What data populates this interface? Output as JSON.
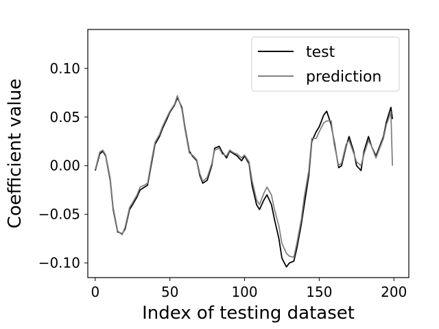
{
  "chart_data": {
    "type": "line",
    "title": "",
    "xlabel": "Index of testing dataset",
    "ylabel": "Coefficient value",
    "xlim": [
      -5,
      210
    ],
    "ylim": [
      -0.115,
      0.14
    ],
    "x_ticks": [
      0,
      50,
      100,
      150,
      200
    ],
    "x_tick_labels": [
      "0",
      "50",
      "100",
      "150",
      "200"
    ],
    "y_ticks": [
      -0.1,
      -0.05,
      0.0,
      0.05,
      0.1
    ],
    "y_tick_labels": [
      "−0.10",
      "−0.05",
      "0.00",
      "0.05",
      "0.10"
    ],
    "grid": false,
    "legend_position": "top-right",
    "series": [
      {
        "name": "test",
        "color": "#000000",
        "x": [
          0,
          3,
          5,
          7,
          10,
          12,
          15,
          18,
          20,
          23,
          25,
          28,
          30,
          33,
          35,
          38,
          40,
          43,
          45,
          48,
          50,
          53,
          55,
          58,
          60,
          63,
          65,
          68,
          70,
          72,
          75,
          78,
          80,
          83,
          85,
          88,
          90,
          93,
          95,
          98,
          100,
          103,
          105,
          108,
          110,
          113,
          115,
          118,
          120,
          123,
          125,
          128,
          130,
          133,
          135,
          138,
          140,
          143,
          145,
          148,
          150,
          153,
          155,
          158,
          160,
          163,
          165,
          168,
          170,
          173,
          175,
          178,
          180,
          183,
          185,
          188,
          190,
          193,
          195,
          198,
          199
        ],
        "y": [
          -0.005,
          0.012,
          0.015,
          0.01,
          -0.015,
          -0.045,
          -0.068,
          -0.07,
          -0.065,
          -0.045,
          -0.04,
          -0.032,
          -0.025,
          -0.022,
          -0.02,
          0.005,
          0.022,
          0.03,
          0.038,
          0.048,
          0.055,
          0.062,
          0.07,
          0.06,
          0.04,
          0.015,
          0.01,
          0.005,
          -0.01,
          -0.018,
          -0.015,
          0.0,
          0.018,
          0.02,
          0.014,
          0.008,
          0.015,
          0.012,
          0.01,
          0.005,
          0.01,
          0.002,
          -0.02,
          -0.04,
          -0.045,
          -0.035,
          -0.03,
          -0.04,
          -0.055,
          -0.075,
          -0.095,
          -0.104,
          -0.1,
          -0.098,
          -0.085,
          -0.06,
          -0.04,
          -0.01,
          0.025,
          0.035,
          0.04,
          0.052,
          0.056,
          0.042,
          0.025,
          -0.002,
          0.0,
          0.02,
          0.03,
          0.015,
          0.0,
          -0.005,
          0.015,
          0.03,
          0.02,
          0.01,
          0.018,
          0.03,
          0.045,
          0.06,
          0.048
        ]
      },
      {
        "name": "prediction",
        "color": "#808080",
        "x": [
          0,
          3,
          5,
          7,
          10,
          12,
          15,
          18,
          20,
          23,
          25,
          28,
          30,
          33,
          35,
          38,
          40,
          43,
          45,
          48,
          50,
          53,
          55,
          58,
          60,
          63,
          65,
          68,
          70,
          72,
          75,
          78,
          80,
          83,
          85,
          88,
          90,
          93,
          95,
          98,
          100,
          103,
          105,
          108,
          110,
          113,
          115,
          118,
          120,
          123,
          125,
          128,
          130,
          133,
          135,
          138,
          140,
          143,
          145,
          148,
          150,
          153,
          155,
          158,
          160,
          163,
          165,
          168,
          170,
          173,
          175,
          178,
          180,
          183,
          185,
          188,
          190,
          193,
          195,
          198,
          199
        ],
        "y": [
          -0.004,
          0.014,
          0.016,
          0.011,
          -0.013,
          -0.043,
          -0.067,
          -0.071,
          -0.063,
          -0.043,
          -0.038,
          -0.03,
          -0.022,
          -0.02,
          -0.018,
          0.008,
          0.024,
          0.032,
          0.04,
          0.05,
          0.056,
          0.063,
          0.072,
          0.058,
          0.038,
          0.013,
          0.011,
          0.006,
          -0.008,
          -0.016,
          -0.012,
          0.002,
          0.016,
          0.018,
          0.012,
          0.01,
          0.016,
          0.013,
          0.012,
          0.008,
          0.011,
          0.004,
          -0.015,
          -0.035,
          -0.04,
          -0.028,
          -0.022,
          -0.03,
          -0.045,
          -0.062,
          -0.08,
          -0.09,
          -0.093,
          -0.094,
          -0.08,
          -0.055,
          -0.032,
          -0.005,
          0.028,
          0.028,
          0.035,
          0.044,
          0.046,
          0.046,
          0.022,
          0.0,
          0.003,
          0.022,
          0.026,
          0.013,
          0.004,
          0.0,
          0.012,
          0.026,
          0.02,
          0.008,
          0.016,
          0.028,
          0.042,
          0.055,
          0.0
        ]
      }
    ]
  }
}
